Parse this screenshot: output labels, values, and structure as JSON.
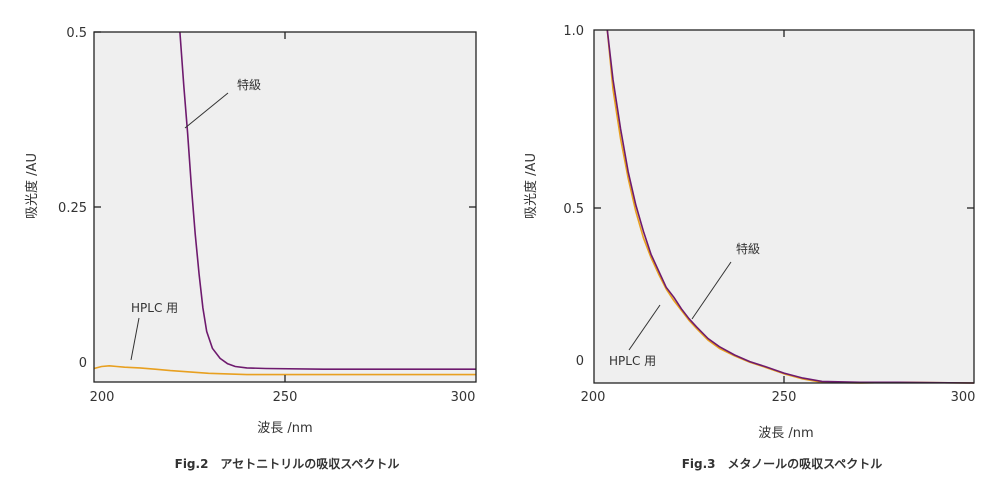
{
  "chart_data": [
    {
      "type": "line",
      "title": "Fig.2　アセトニトリルの吸収スペクトル",
      "xlabel": "波長 /nm",
      "ylabel": "吸光度 /AU",
      "xlim": [
        200,
        300
      ],
      "ylim": [
        -0.02,
        0.5
      ],
      "x_ticks": [
        "200",
        "250",
        "300"
      ],
      "y_ticks": [
        "0",
        "0.25",
        "0.5"
      ],
      "grid": false,
      "background": "#efefef",
      "series": [
        {
          "name": "特級",
          "color": "#6e1a6e",
          "points": [
            [
              222.5,
              0.5
            ],
            [
              223.5,
              0.42
            ],
            [
              224.5,
              0.35
            ],
            [
              225.5,
              0.27
            ],
            [
              226.5,
              0.2
            ],
            [
              227.5,
              0.14
            ],
            [
              228.5,
              0.09
            ],
            [
              229.5,
              0.055
            ],
            [
              231,
              0.03
            ],
            [
              233,
              0.015
            ],
            [
              235,
              0.007
            ],
            [
              237,
              0.003
            ],
            [
              240,
              0.001
            ],
            [
              245,
              0.0
            ],
            [
              260,
              -0.001
            ],
            [
              280,
              -0.001
            ],
            [
              300,
              -0.001
            ]
          ]
        },
        {
          "name": "HPLC 用",
          "color": "#e8a020",
          "points": [
            [
              200,
              0.0
            ],
            [
              202,
              0.003
            ],
            [
              204,
              0.004
            ],
            [
              206,
              0.003
            ],
            [
              208,
              0.002
            ],
            [
              212,
              0.001
            ],
            [
              216,
              -0.001
            ],
            [
              220,
              -0.003
            ],
            [
              225,
              -0.005
            ],
            [
              230,
              -0.007
            ],
            [
              235,
              -0.008
            ],
            [
              240,
              -0.009
            ],
            [
              250,
              -0.009
            ],
            [
              270,
              -0.009
            ],
            [
              300,
              -0.009
            ]
          ]
        }
      ],
      "annotations": [
        {
          "text": "特級",
          "target_series": "特級"
        },
        {
          "text": "HPLC 用",
          "target_series": "HPLC 用"
        }
      ]
    },
    {
      "type": "line",
      "title": "Fig.3　メタノールの吸収スペクトル",
      "xlabel": "波長 /nm",
      "ylabel": "吸光度 /AU",
      "xlim": [
        200,
        300
      ],
      "ylim": [
        -0.07,
        1.0
      ],
      "x_ticks": [
        "200",
        "250",
        "300"
      ],
      "y_ticks": [
        "0",
        "0.5",
        "1.0"
      ],
      "grid": false,
      "background": "#efefef",
      "series": [
        {
          "name": "特級",
          "color": "#6e1a6e",
          "points": [
            [
              203.5,
              1.0
            ],
            [
              205,
              0.85
            ],
            [
              207,
              0.7
            ],
            [
              209,
              0.57
            ],
            [
              211,
              0.47
            ],
            [
              213,
              0.39
            ],
            [
              215,
              0.32
            ],
            [
              217,
              0.27
            ],
            [
              219,
              0.22
            ],
            [
              221,
              0.19
            ],
            [
              223,
              0.155
            ],
            [
              225,
              0.125
            ],
            [
              227,
              0.1
            ],
            [
              230,
              0.065
            ],
            [
              233,
              0.04
            ],
            [
              237,
              0.015
            ],
            [
              241,
              -0.005
            ],
            [
              245,
              -0.02
            ],
            [
              250,
              -0.04
            ],
            [
              255,
              -0.055
            ],
            [
              260,
              -0.065
            ],
            [
              270,
              -0.068
            ],
            [
              280,
              -0.068
            ],
            [
              300,
              -0.07
            ]
          ]
        },
        {
          "name": "HPLC 用",
          "color": "#e8a020",
          "points": [
            [
              203.5,
              1.0
            ],
            [
              205,
              0.82
            ],
            [
              207,
              0.67
            ],
            [
              209,
              0.55
            ],
            [
              211,
              0.45
            ],
            [
              213,
              0.37
            ],
            [
              215,
              0.31
            ],
            [
              217,
              0.26
            ],
            [
              219,
              0.215
            ],
            [
              221,
              0.18
            ],
            [
              223,
              0.15
            ],
            [
              225,
              0.12
            ],
            [
              227,
              0.095
            ],
            [
              230,
              0.06
            ],
            [
              233,
              0.035
            ],
            [
              237,
              0.012
            ],
            [
              241,
              -0.007
            ],
            [
              245,
              -0.022
            ],
            [
              250,
              -0.042
            ],
            [
              255,
              -0.058
            ],
            [
              260,
              -0.068
            ],
            [
              270,
              -0.07
            ],
            [
              280,
              -0.068
            ],
            [
              300,
              -0.07
            ]
          ]
        }
      ],
      "annotations": [
        {
          "text": "特級",
          "target_series": "特級"
        },
        {
          "text": "HPLC 用",
          "target_series": "HPLC 用"
        }
      ]
    }
  ]
}
